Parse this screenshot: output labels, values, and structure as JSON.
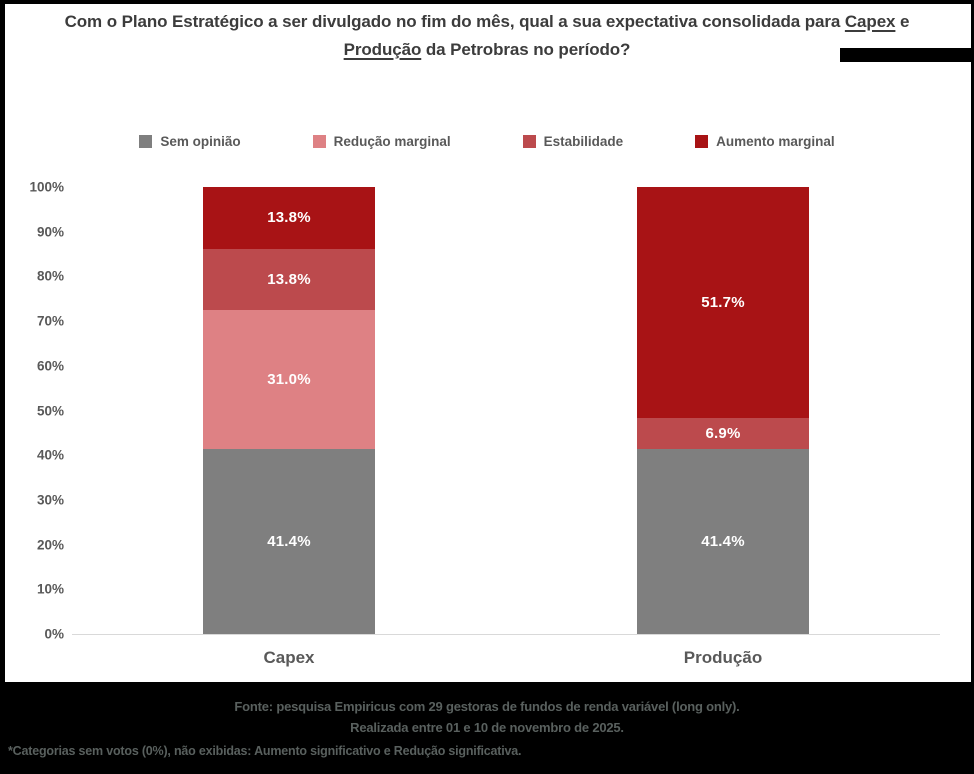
{
  "title": {
    "segments": [
      {
        "text": "Com o Plano Estratégico a ser divulgado no fim do mês, qual a sua expectativa consolidada para ",
        "underline": false
      },
      {
        "text": "Capex",
        "underline": true
      },
      {
        "text": " e\n",
        "underline": false
      },
      {
        "text": "Produção",
        "underline": true
      },
      {
        "text": " da Petrobras no período?",
        "underline": false
      }
    ]
  },
  "chart_data": {
    "type": "bar",
    "stacked": true,
    "percent": true,
    "title": "Com o Plano Estratégico a ser divulgado no fim do mês, qual a sua expectativa consolidada para Capex e Produção da Petrobras no período?",
    "categories": [
      "Capex",
      "Produção"
    ],
    "series": [
      {
        "name": "Sem opinião",
        "color": "#7f7f7f",
        "values": [
          41.4,
          41.4
        ]
      },
      {
        "name": "Redução marginal",
        "color": "#de8184",
        "values": [
          31.0,
          0.0
        ]
      },
      {
        "name": "Estabilidade",
        "color": "#bc4a4d",
        "values": [
          13.8,
          6.9
        ]
      },
      {
        "name": "Aumento marginal",
        "color": "#a81315",
        "values": [
          13.8,
          51.7
        ]
      }
    ],
    "data_labels": {
      "Capex": [
        "41.4%",
        "31.0%",
        "13.8%",
        "13.8%"
      ],
      "Produção": [
        "41.4%",
        "6.9%",
        "51.7%"
      ]
    },
    "y_axis": {
      "min": 0,
      "max": 100,
      "step": 10,
      "suffix": "%"
    },
    "legend_position": "top",
    "grid": false
  },
  "footer": {
    "line1": "Fonte: pesquisa Empiricus com 29 gestoras de fundos de renda variável (long only).",
    "line2": "Realizada entre 01 e 10 de novembro de 2025.",
    "note": "*Categorias sem votos (0%), não exibidas:  Aumento significativo e Redução significativa."
  },
  "colors": {
    "title": "#3c3c3c",
    "axis_label": "#595959",
    "axis_line": "#d9d9d9",
    "data_label": "#ffffff",
    "footer_bg": "#000000",
    "footer_text": "#59605e",
    "frame_border": "#000000"
  }
}
